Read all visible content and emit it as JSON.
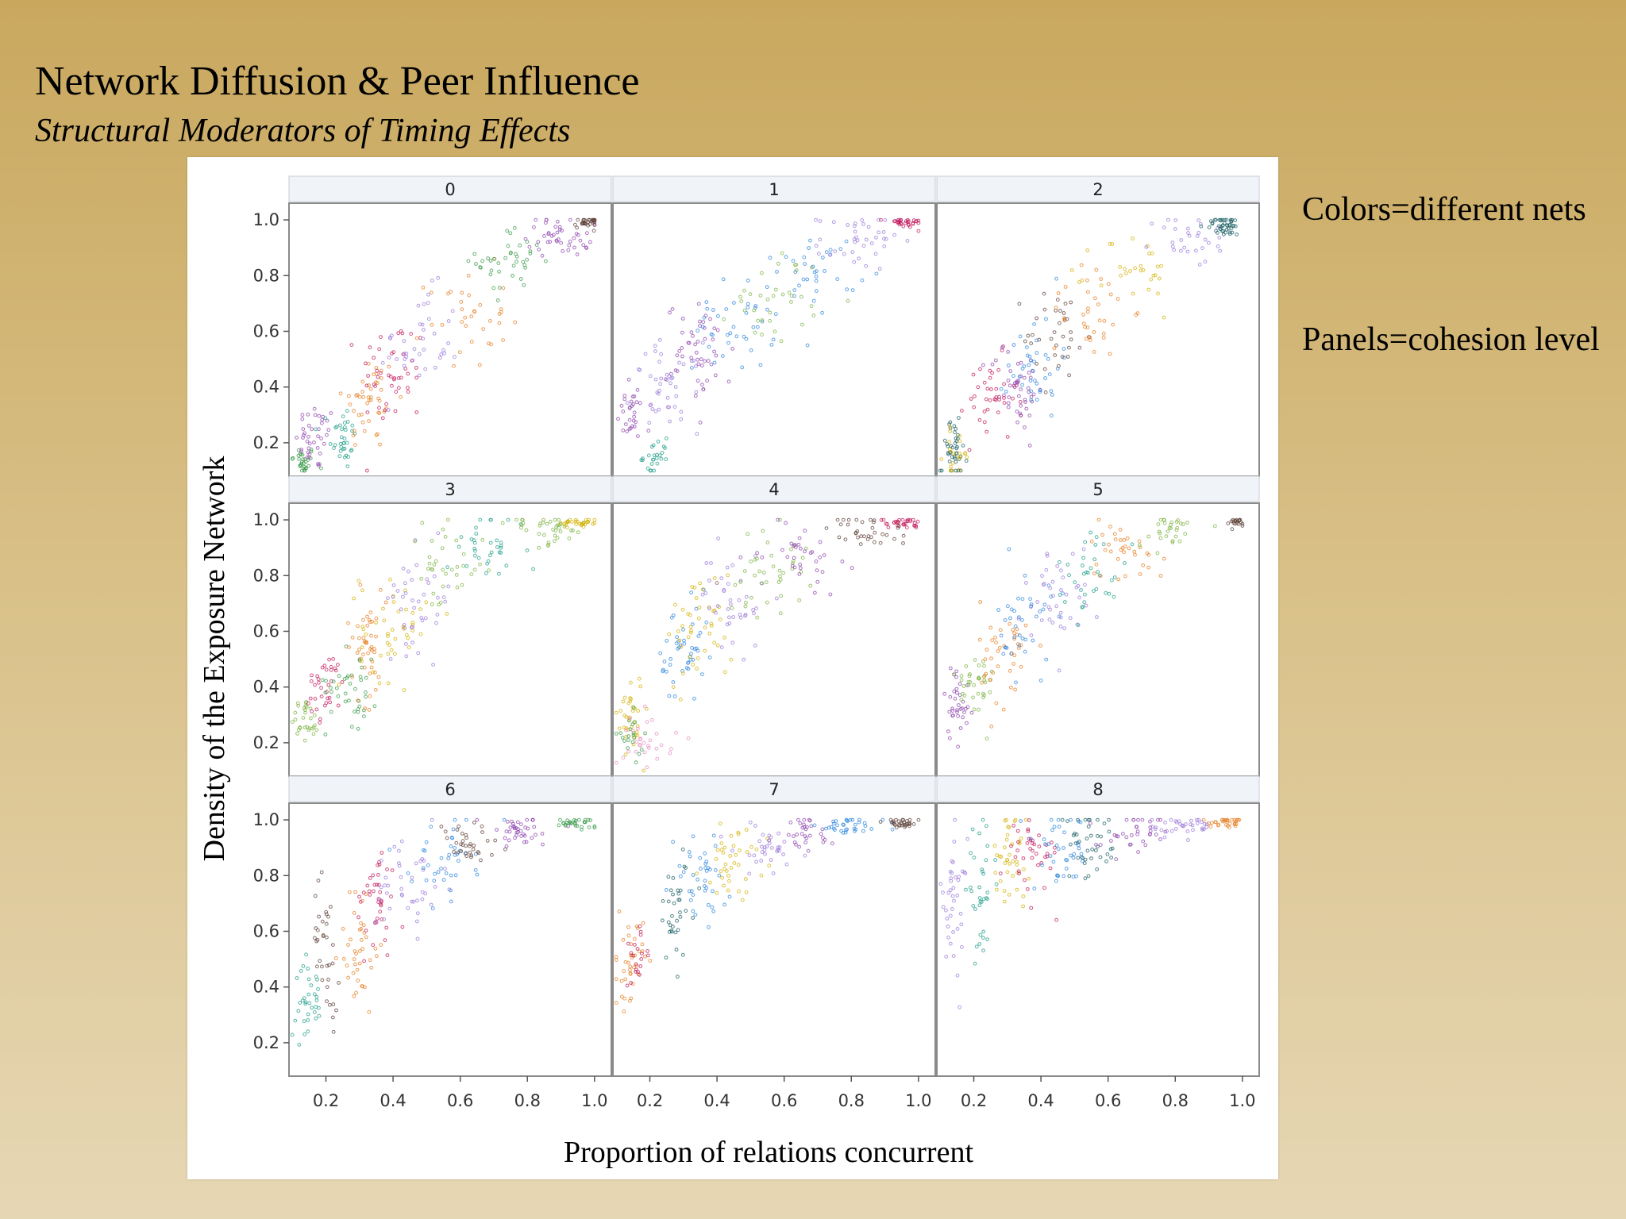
{
  "slide": {
    "title": "Network Diffusion & Peer Influence",
    "subtitle": "Structural Moderators of Timing Effects"
  },
  "notes": {
    "colors": "Colors=different nets",
    "panels": "Panels=cohesion level"
  },
  "colors": {
    "palette": [
      "#3a9a4a",
      "#8e44ad",
      "#e67e22",
      "#c2185b",
      "#1f9e89",
      "#2e86de",
      "#9b7ad9",
      "#d4b106",
      "#5d4037",
      "#7cb342",
      "#e58fc4",
      "#1a5e63"
    ],
    "panel_border": "#8a8a8a",
    "strip_bg": "#f0f3f8"
  },
  "chart_data": {
    "type": "scatter",
    "title": "",
    "xlabel": "Proportion of relations concurrent",
    "ylabel": "Density of the Exposure Network",
    "xlim": [
      0.09,
      1.05
    ],
    "ylim": [
      0.08,
      1.06
    ],
    "x_ticks": [
      0.2,
      0.4,
      0.6,
      0.8,
      1.0
    ],
    "x_tick_labels": [
      "0.2",
      "0.4",
      "0.6",
      "0.8",
      "1.0"
    ],
    "y_ticks": [
      0.2,
      0.4,
      0.6,
      0.8,
      1.0
    ],
    "y_tick_labels": [
      "0.2",
      "0.4",
      "0.6",
      "0.8",
      "1.0"
    ],
    "grid": false,
    "legend": "none",
    "layout": {
      "rows": 3,
      "cols": 3
    },
    "panels": [
      {
        "label": "0",
        "clusters": [
          {
            "x": 0.13,
            "y": 0.13,
            "sx": 0.02,
            "sy": 0.03,
            "n": 30,
            "color": 0
          },
          {
            "x": 0.17,
            "y": 0.22,
            "sx": 0.03,
            "sy": 0.06,
            "n": 40,
            "color": 1
          },
          {
            "x": 0.25,
            "y": 0.22,
            "sx": 0.02,
            "sy": 0.06,
            "n": 35,
            "color": 4
          },
          {
            "x": 0.33,
            "y": 0.35,
            "sx": 0.04,
            "sy": 0.09,
            "n": 45,
            "color": 2
          },
          {
            "x": 0.4,
            "y": 0.45,
            "sx": 0.05,
            "sy": 0.1,
            "n": 45,
            "color": 3
          },
          {
            "x": 0.48,
            "y": 0.55,
            "sx": 0.06,
            "sy": 0.1,
            "n": 40,
            "color": 6
          },
          {
            "x": 0.62,
            "y": 0.65,
            "sx": 0.06,
            "sy": 0.09,
            "n": 35,
            "color": 2
          },
          {
            "x": 0.75,
            "y": 0.85,
            "sx": 0.05,
            "sy": 0.06,
            "n": 40,
            "color": 0
          },
          {
            "x": 0.9,
            "y": 0.95,
            "sx": 0.05,
            "sy": 0.04,
            "n": 45,
            "color": 1
          },
          {
            "x": 0.98,
            "y": 0.99,
            "sx": 0.02,
            "sy": 0.01,
            "n": 30,
            "color": 8
          }
        ]
      },
      {
        "label": "1",
        "clusters": [
          {
            "x": 0.14,
            "y": 0.3,
            "sx": 0.02,
            "sy": 0.05,
            "n": 30,
            "color": 1
          },
          {
            "x": 0.22,
            "y": 0.15,
            "sx": 0.02,
            "sy": 0.03,
            "n": 25,
            "color": 4
          },
          {
            "x": 0.25,
            "y": 0.4,
            "sx": 0.05,
            "sy": 0.08,
            "n": 45,
            "color": 6
          },
          {
            "x": 0.35,
            "y": 0.52,
            "sx": 0.05,
            "sy": 0.09,
            "n": 50,
            "color": 1
          },
          {
            "x": 0.45,
            "y": 0.62,
            "sx": 0.06,
            "sy": 0.08,
            "n": 40,
            "color": 5
          },
          {
            "x": 0.58,
            "y": 0.72,
            "sx": 0.07,
            "sy": 0.08,
            "n": 35,
            "color": 9
          },
          {
            "x": 0.7,
            "y": 0.82,
            "sx": 0.06,
            "sy": 0.07,
            "n": 35,
            "color": 5
          },
          {
            "x": 0.82,
            "y": 0.92,
            "sx": 0.06,
            "sy": 0.05,
            "n": 40,
            "color": 6
          },
          {
            "x": 0.96,
            "y": 0.99,
            "sx": 0.03,
            "sy": 0.01,
            "n": 30,
            "color": 3
          }
        ]
      },
      {
        "label": "2",
        "clusters": [
          {
            "x": 0.14,
            "y": 0.18,
            "sx": 0.02,
            "sy": 0.05,
            "n": 40,
            "color": 11
          },
          {
            "x": 0.15,
            "y": 0.16,
            "sx": 0.02,
            "sy": 0.04,
            "n": 20,
            "color": 7
          },
          {
            "x": 0.25,
            "y": 0.35,
            "sx": 0.04,
            "sy": 0.08,
            "n": 40,
            "color": 3
          },
          {
            "x": 0.33,
            "y": 0.4,
            "sx": 0.04,
            "sy": 0.08,
            "n": 45,
            "color": 1
          },
          {
            "x": 0.38,
            "y": 0.48,
            "sx": 0.04,
            "sy": 0.09,
            "n": 40,
            "color": 5
          },
          {
            "x": 0.45,
            "y": 0.58,
            "sx": 0.05,
            "sy": 0.09,
            "n": 35,
            "color": 8
          },
          {
            "x": 0.55,
            "y": 0.68,
            "sx": 0.06,
            "sy": 0.09,
            "n": 35,
            "color": 2
          },
          {
            "x": 0.68,
            "y": 0.8,
            "sx": 0.06,
            "sy": 0.08,
            "n": 30,
            "color": 7
          },
          {
            "x": 0.85,
            "y": 0.93,
            "sx": 0.06,
            "sy": 0.05,
            "n": 30,
            "color": 6
          },
          {
            "x": 0.95,
            "y": 0.98,
            "sx": 0.03,
            "sy": 0.02,
            "n": 45,
            "color": 11
          }
        ]
      },
      {
        "label": "3",
        "clusters": [
          {
            "x": 0.14,
            "y": 0.28,
            "sx": 0.02,
            "sy": 0.04,
            "n": 30,
            "color": 9
          },
          {
            "x": 0.2,
            "y": 0.4,
            "sx": 0.03,
            "sy": 0.06,
            "n": 35,
            "color": 3
          },
          {
            "x": 0.28,
            "y": 0.42,
            "sx": 0.04,
            "sy": 0.08,
            "n": 40,
            "color": 0
          },
          {
            "x": 0.32,
            "y": 0.55,
            "sx": 0.03,
            "sy": 0.1,
            "n": 45,
            "color": 2
          },
          {
            "x": 0.4,
            "y": 0.62,
            "sx": 0.05,
            "sy": 0.1,
            "n": 45,
            "color": 7
          },
          {
            "x": 0.48,
            "y": 0.72,
            "sx": 0.05,
            "sy": 0.09,
            "n": 40,
            "color": 6
          },
          {
            "x": 0.55,
            "y": 0.82,
            "sx": 0.06,
            "sy": 0.08,
            "n": 35,
            "color": 9
          },
          {
            "x": 0.68,
            "y": 0.9,
            "sx": 0.06,
            "sy": 0.06,
            "n": 35,
            "color": 4
          },
          {
            "x": 0.86,
            "y": 0.97,
            "sx": 0.06,
            "sy": 0.03,
            "n": 40,
            "color": 9
          },
          {
            "x": 0.96,
            "y": 0.99,
            "sx": 0.03,
            "sy": 0.01,
            "n": 30,
            "color": 7
          }
        ]
      },
      {
        "label": "4",
        "clusters": [
          {
            "x": 0.14,
            "y": 0.3,
            "sx": 0.02,
            "sy": 0.08,
            "n": 35,
            "color": 7
          },
          {
            "x": 0.14,
            "y": 0.22,
            "sx": 0.02,
            "sy": 0.04,
            "n": 20,
            "color": 0
          },
          {
            "x": 0.2,
            "y": 0.22,
            "sx": 0.04,
            "sy": 0.05,
            "n": 30,
            "color": 10
          },
          {
            "x": 0.3,
            "y": 0.5,
            "sx": 0.04,
            "sy": 0.1,
            "n": 45,
            "color": 5
          },
          {
            "x": 0.35,
            "y": 0.62,
            "sx": 0.05,
            "sy": 0.1,
            "n": 45,
            "color": 7
          },
          {
            "x": 0.45,
            "y": 0.72,
            "sx": 0.05,
            "sy": 0.09,
            "n": 40,
            "color": 6
          },
          {
            "x": 0.55,
            "y": 0.82,
            "sx": 0.06,
            "sy": 0.08,
            "n": 40,
            "color": 9
          },
          {
            "x": 0.65,
            "y": 0.88,
            "sx": 0.06,
            "sy": 0.06,
            "n": 35,
            "color": 1
          },
          {
            "x": 0.85,
            "y": 0.96,
            "sx": 0.06,
            "sy": 0.03,
            "n": 35,
            "color": 8
          },
          {
            "x": 0.95,
            "y": 0.99,
            "sx": 0.03,
            "sy": 0.01,
            "n": 30,
            "color": 3
          }
        ]
      },
      {
        "label": "5",
        "clusters": [
          {
            "x": 0.15,
            "y": 0.35,
            "sx": 0.02,
            "sy": 0.07,
            "n": 35,
            "color": 1
          },
          {
            "x": 0.2,
            "y": 0.4,
            "sx": 0.03,
            "sy": 0.07,
            "n": 35,
            "color": 9
          },
          {
            "x": 0.3,
            "y": 0.52,
            "sx": 0.04,
            "sy": 0.1,
            "n": 40,
            "color": 2
          },
          {
            "x": 0.35,
            "y": 0.62,
            "sx": 0.04,
            "sy": 0.1,
            "n": 40,
            "color": 5
          },
          {
            "x": 0.45,
            "y": 0.72,
            "sx": 0.05,
            "sy": 0.09,
            "n": 40,
            "color": 6
          },
          {
            "x": 0.55,
            "y": 0.82,
            "sx": 0.05,
            "sy": 0.08,
            "n": 35,
            "color": 4
          },
          {
            "x": 0.65,
            "y": 0.9,
            "sx": 0.06,
            "sy": 0.06,
            "n": 35,
            "color": 2
          },
          {
            "x": 0.78,
            "y": 0.96,
            "sx": 0.05,
            "sy": 0.03,
            "n": 30,
            "color": 9
          },
          {
            "x": 0.98,
            "y": 0.99,
            "sx": 0.02,
            "sy": 0.01,
            "n": 20,
            "color": 8
          }
        ]
      },
      {
        "label": "6",
        "clusters": [
          {
            "x": 0.15,
            "y": 0.35,
            "sx": 0.02,
            "sy": 0.07,
            "n": 35,
            "color": 4
          },
          {
            "x": 0.2,
            "y": 0.55,
            "sx": 0.02,
            "sy": 0.12,
            "n": 35,
            "color": 8
          },
          {
            "x": 0.3,
            "y": 0.55,
            "sx": 0.03,
            "sy": 0.12,
            "n": 40,
            "color": 2
          },
          {
            "x": 0.35,
            "y": 0.7,
            "sx": 0.03,
            "sy": 0.1,
            "n": 40,
            "color": 3
          },
          {
            "x": 0.45,
            "y": 0.78,
            "sx": 0.05,
            "sy": 0.09,
            "n": 40,
            "color": 6
          },
          {
            "x": 0.55,
            "y": 0.86,
            "sx": 0.05,
            "sy": 0.07,
            "n": 40,
            "color": 5
          },
          {
            "x": 0.62,
            "y": 0.9,
            "sx": 0.05,
            "sy": 0.05,
            "n": 35,
            "color": 8
          },
          {
            "x": 0.78,
            "y": 0.96,
            "sx": 0.06,
            "sy": 0.03,
            "n": 40,
            "color": 1
          },
          {
            "x": 0.95,
            "y": 0.99,
            "sx": 0.03,
            "sy": 0.01,
            "n": 30,
            "color": 0
          }
        ]
      },
      {
        "label": "7",
        "clusters": [
          {
            "x": 0.14,
            "y": 0.48,
            "sx": 0.02,
            "sy": 0.08,
            "n": 40,
            "color": 2
          },
          {
            "x": 0.16,
            "y": 0.5,
            "sx": 0.02,
            "sy": 0.06,
            "n": 20,
            "color": 3
          },
          {
            "x": 0.28,
            "y": 0.68,
            "sx": 0.03,
            "sy": 0.1,
            "n": 35,
            "color": 11
          },
          {
            "x": 0.35,
            "y": 0.78,
            "sx": 0.04,
            "sy": 0.08,
            "n": 40,
            "color": 5
          },
          {
            "x": 0.45,
            "y": 0.86,
            "sx": 0.05,
            "sy": 0.06,
            "n": 40,
            "color": 7
          },
          {
            "x": 0.55,
            "y": 0.9,
            "sx": 0.05,
            "sy": 0.05,
            "n": 35,
            "color": 6
          },
          {
            "x": 0.66,
            "y": 0.94,
            "sx": 0.05,
            "sy": 0.04,
            "n": 30,
            "color": 1
          },
          {
            "x": 0.8,
            "y": 0.98,
            "sx": 0.05,
            "sy": 0.02,
            "n": 35,
            "color": 5
          },
          {
            "x": 0.95,
            "y": 0.99,
            "sx": 0.03,
            "sy": 0.01,
            "n": 30,
            "color": 8
          }
        ]
      },
      {
        "label": "8",
        "clusters": [
          {
            "x": 0.14,
            "y": 0.7,
            "sx": 0.02,
            "sy": 0.12,
            "n": 40,
            "color": 6
          },
          {
            "x": 0.22,
            "y": 0.75,
            "sx": 0.02,
            "sy": 0.1,
            "n": 35,
            "color": 4
          },
          {
            "x": 0.3,
            "y": 0.85,
            "sx": 0.03,
            "sy": 0.08,
            "n": 40,
            "color": 7
          },
          {
            "x": 0.38,
            "y": 0.88,
            "sx": 0.04,
            "sy": 0.07,
            "n": 40,
            "color": 3
          },
          {
            "x": 0.46,
            "y": 0.88,
            "sx": 0.04,
            "sy": 0.07,
            "n": 40,
            "color": 5
          },
          {
            "x": 0.55,
            "y": 0.9,
            "sx": 0.05,
            "sy": 0.06,
            "n": 40,
            "color": 11
          },
          {
            "x": 0.68,
            "y": 0.95,
            "sx": 0.05,
            "sy": 0.04,
            "n": 35,
            "color": 1
          },
          {
            "x": 0.82,
            "y": 0.98,
            "sx": 0.05,
            "sy": 0.02,
            "n": 35,
            "color": 6
          },
          {
            "x": 0.96,
            "y": 0.99,
            "sx": 0.03,
            "sy": 0.01,
            "n": 30,
            "color": 2
          }
        ]
      }
    ]
  }
}
